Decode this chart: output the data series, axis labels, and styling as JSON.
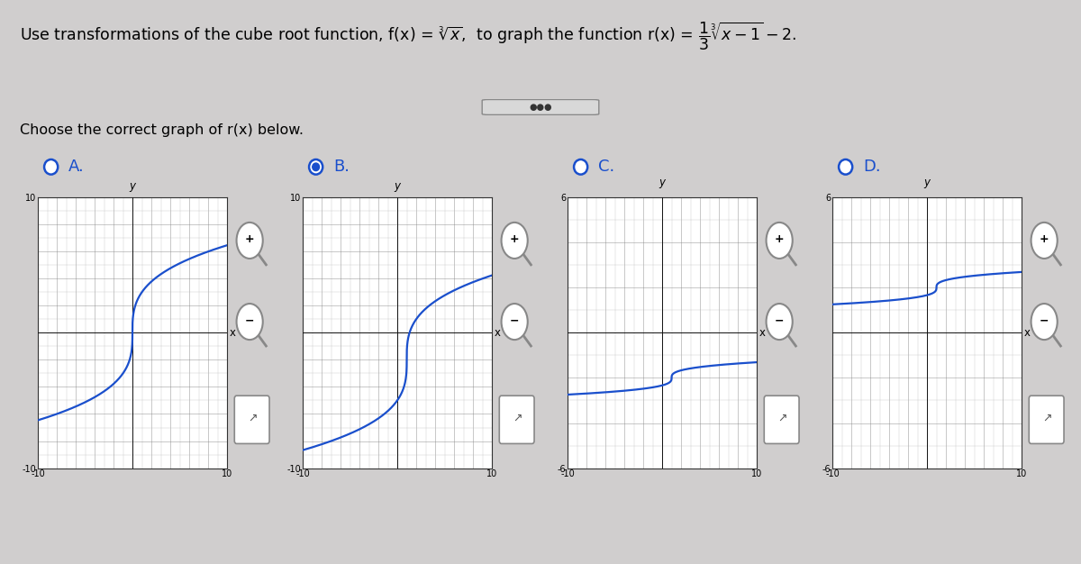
{
  "title_line": "Use transformations of the cube root function, f(x) = $\\sqrt[3]{x}$, to graph the function r(x) = $\\frac{1}{3}\\sqrt[3]{x-1} - 2$.",
  "subtitle": "Choose the correct graph of r(x) below.",
  "bg_color": "#d0cece",
  "panel_bg": "#e8e6e4",
  "white_bg": "#ffffff",
  "grid_color": "#888888",
  "axis_color": "#111111",
  "curve_color": "#1a4fcc",
  "radio_unsel_color": "#1a4fcc",
  "radio_sel_color": "#1a4fcc",
  "label_color": "#1a4fcc",
  "graphs": [
    {
      "label": "A",
      "selected": false,
      "xlim": [
        -10,
        10
      ],
      "ylim": [
        -10,
        10
      ],
      "ytop_label": "10",
      "ybot_label": "-10",
      "xtick_labels": [
        "-10",
        "10"
      ],
      "curve_type": "steep_cbrt",
      "x_shift": 0,
      "y_shift": 0,
      "x_scale": 1.0,
      "y_scale": 3.0
    },
    {
      "label": "B",
      "selected": true,
      "xlim": [
        -10,
        10
      ],
      "ylim": [
        -10,
        10
      ],
      "ytop_label": "10",
      "ybot_label": "-10",
      "xtick_labels": [
        "-10",
        "10"
      ],
      "curve_type": "steep_line",
      "x_shift": 1,
      "y_shift": -2,
      "x_scale": 1.0,
      "y_scale": 3.0
    },
    {
      "label": "C",
      "selected": false,
      "xlim": [
        -10,
        10
      ],
      "ylim": [
        -6,
        6
      ],
      "ytop_label": "6",
      "ybot_label": "-6",
      "xtick_labels": [
        "-10",
        "10"
      ],
      "curve_type": "flat_cbrt",
      "x_shift": 1,
      "y_shift": -2,
      "x_scale": 1.0,
      "y_scale": 1.0
    },
    {
      "label": "D",
      "selected": false,
      "xlim": [
        -10,
        10
      ],
      "ylim": [
        -6,
        6
      ],
      "ytop_label": "6",
      "ybot_label": "-6",
      "xtick_labels": [
        "-10",
        "10"
      ],
      "curve_type": "flat_high_cbrt",
      "x_shift": 1,
      "y_shift": 2,
      "x_scale": 1.0,
      "y_scale": 1.0
    }
  ],
  "title_fontsize": 12.5,
  "subtitle_fontsize": 11.5,
  "tick_fontsize": 7,
  "label_fontsize": 8.5,
  "radio_label_fontsize": 13
}
